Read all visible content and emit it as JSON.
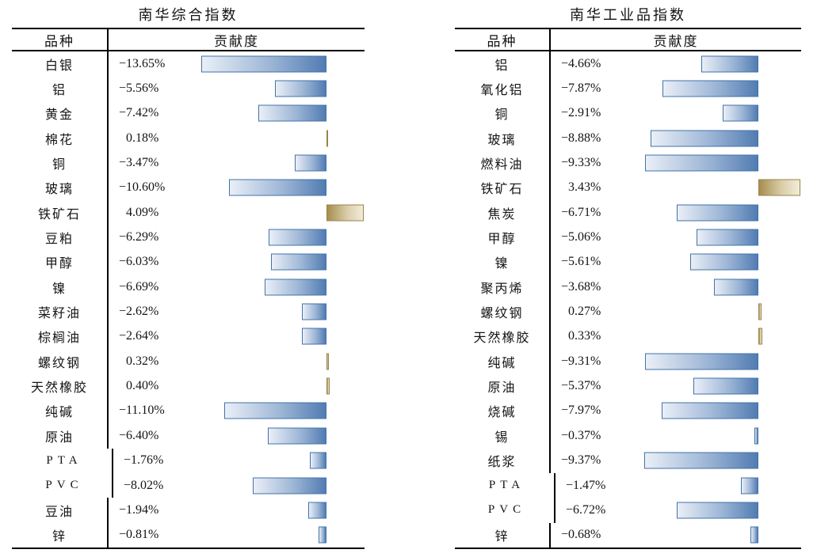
{
  "chart_data": [
    {
      "type": "table",
      "subtype": "databar",
      "title": "南华综合指数",
      "columns": [
        "品种",
        "贡献度"
      ],
      "categories": [
        "白银",
        "铝",
        "黄金",
        "棉花",
        "铜",
        "玻璃",
        "铁矿石",
        "豆粕",
        "甲醇",
        "镍",
        "菜籽油",
        "棕榈油",
        "螺纹钢",
        "天然橡胶",
        "纯碱",
        "原油",
        "PTA",
        "PVC",
        "豆油",
        "锌"
      ],
      "values": [
        -13.65,
        -5.56,
        -7.42,
        0.18,
        -3.47,
        -10.6,
        4.09,
        -6.29,
        -6.03,
        -6.69,
        -2.62,
        -2.64,
        0.32,
        0.4,
        -11.1,
        -6.4,
        -1.76,
        -8.02,
        -1.94,
        -0.81
      ],
      "value_labels": [
        "−13.65%",
        "−5.56%",
        "−7.42%",
        "0.18%",
        "−3.47%",
        "−10.60%",
        "4.09%",
        "−6.29%",
        "−6.03%",
        "−6.69%",
        "−2.62%",
        "−2.64%",
        "0.32%",
        "0.40%",
        "−11.10%",
        "−6.40%",
        "−1.76%",
        "−8.02%",
        "−1.94%",
        "−0.81%"
      ],
      "negative_bar_color": "#527cb2",
      "positive_bar_color": "#a68d4f",
      "value_range": [
        -13.65,
        4.09
      ]
    },
    {
      "type": "table",
      "subtype": "databar",
      "title": "南华工业品指数",
      "columns": [
        "品种",
        "贡献度"
      ],
      "categories": [
        "铝",
        "氧化铝",
        "铜",
        "玻璃",
        "燃料油",
        "铁矿石",
        "焦炭",
        "甲醇",
        "镍",
        "聚丙烯",
        "螺纹钢",
        "天然橡胶",
        "纯碱",
        "原油",
        "烧碱",
        "锡",
        "纸浆",
        "PTA",
        "PVC",
        "锌"
      ],
      "values": [
        -4.66,
        -7.87,
        -2.91,
        -8.88,
        -9.33,
        3.43,
        -6.71,
        -5.06,
        -5.61,
        -3.68,
        0.27,
        0.33,
        -9.31,
        -5.37,
        -7.97,
        -0.37,
        -9.37,
        -1.47,
        -6.72,
        -0.68
      ],
      "value_labels": [
        "−4.66%",
        "−7.87%",
        "−2.91%",
        "−8.88%",
        "−9.33%",
        "3.43%",
        "−6.71%",
        "−5.06%",
        "−5.61%",
        "−3.68%",
        "0.27%",
        "0.33%",
        "−9.31%",
        "−5.37%",
        "−7.97%",
        "−0.37%",
        "−9.37%",
        "−1.47%",
        "−6.72%",
        "−0.68%"
      ],
      "negative_bar_color": "#527cb2",
      "positive_bar_color": "#a68d4f",
      "value_range": [
        -9.37,
        3.43
      ]
    }
  ]
}
